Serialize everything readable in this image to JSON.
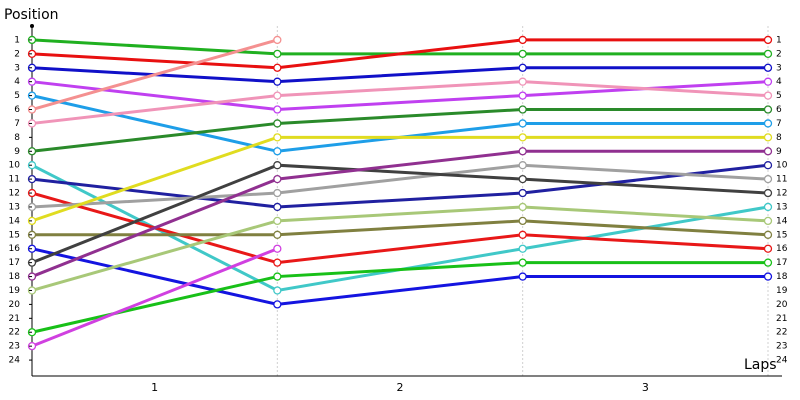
{
  "chart_data": {
    "type": "line",
    "y_label": "Position",
    "x_label": "Laps",
    "x": [
      0,
      1,
      2,
      3
    ],
    "xlim": [
      0,
      3
    ],
    "xticks": [
      {
        "value": 0.5,
        "label": "1"
      },
      {
        "value": 1.5,
        "label": "2"
      },
      {
        "value": 2.5,
        "label": "3"
      }
    ],
    "ylim": [
      25,
      0
    ],
    "yticks": [
      1,
      2,
      3,
      4,
      5,
      6,
      7,
      8,
      9,
      10,
      11,
      12,
      13,
      14,
      15,
      16,
      17,
      18,
      19,
      20,
      21,
      22,
      23,
      24
    ],
    "series": [
      {
        "color": "#20b020",
        "values": [
          1,
          2,
          2,
          2
        ]
      },
      {
        "color": "#e81010",
        "values": [
          2,
          3,
          1,
          1
        ]
      },
      {
        "color": "#1010c8",
        "values": [
          3,
          4,
          3,
          3
        ]
      },
      {
        "color": "#c040f0",
        "values": [
          4,
          6,
          5,
          4
        ]
      },
      {
        "color": "#1e9ee8",
        "values": [
          5,
          9,
          7,
          7
        ]
      },
      {
        "color": "#f49090",
        "values": [
          6,
          1,
          null,
          null
        ]
      },
      {
        "color": "#f094b8",
        "values": [
          7,
          5,
          4,
          5
        ]
      },
      {
        "color": "#2a8a2a",
        "values": [
          9,
          7,
          6,
          6
        ]
      },
      {
        "color": "#40c8c8",
        "values": [
          10,
          19,
          16,
          13
        ]
      },
      {
        "color": "#2020a0",
        "values": [
          11,
          13,
          12,
          10
        ]
      },
      {
        "color": "#e81818",
        "values": [
          12,
          17,
          15,
          16
        ]
      },
      {
        "color": "#a0a0a0",
        "values": [
          13,
          12,
          10,
          11
        ]
      },
      {
        "color": "#e0dc20",
        "values": [
          14,
          8,
          8,
          8
        ]
      },
      {
        "color": "#808040",
        "values": [
          15,
          15,
          14,
          15
        ]
      },
      {
        "color": "#1414e0",
        "values": [
          16,
          20,
          18,
          18
        ]
      },
      {
        "color": "#404040",
        "values": [
          17,
          10,
          11,
          12
        ]
      },
      {
        "color": "#903090",
        "values": [
          18,
          11,
          9,
          9
        ]
      },
      {
        "color": "#a8c878",
        "values": [
          19,
          14,
          13,
          14
        ]
      },
      {
        "color": "#18c018",
        "values": [
          22,
          18,
          17,
          17
        ]
      },
      {
        "color": "#d040e0",
        "values": [
          23,
          16,
          null,
          null
        ]
      }
    ]
  }
}
